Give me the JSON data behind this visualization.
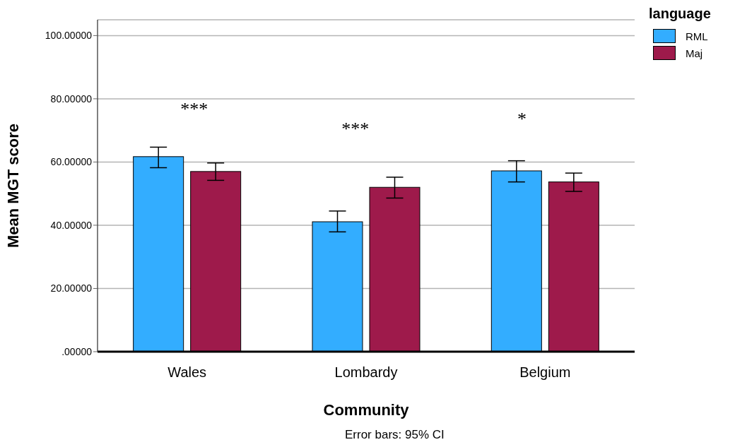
{
  "chart_data": {
    "type": "bar",
    "xlabel": "Community",
    "ylabel": "Mean MGT score",
    "legend_title": "language",
    "categories": [
      "Wales",
      "Lombardy",
      "Belgium"
    ],
    "series": [
      {
        "name": "RML",
        "color": "#33adff",
        "values": [
          61.7,
          41.1,
          57.2
        ],
        "errors": [
          [
            58.2,
            64.7
          ],
          [
            37.9,
            44.5
          ],
          [
            53.7,
            60.4
          ]
        ]
      },
      {
        "name": "Maj",
        "color": "#9e1a4b",
        "values": [
          57.0,
          52.0,
          53.7
        ],
        "errors": [
          [
            54.2,
            59.7
          ],
          [
            48.6,
            55.2
          ],
          [
            50.7,
            56.5
          ]
        ]
      }
    ],
    "ylim": [
      0,
      105
    ],
    "yticks": [
      {
        "value": 0,
        "label": ".00000"
      },
      {
        "value": 20,
        "label": "20.00000"
      },
      {
        "value": 40,
        "label": "40.00000"
      },
      {
        "value": 60,
        "label": "60.00000"
      },
      {
        "value": 80,
        "label": "80.00000"
      },
      {
        "value": 100,
        "label": "100.00000"
      }
    ],
    "grid": "y",
    "legend": "top right",
    "annotations": [
      "***",
      "***",
      "*",
      "Error bars: 95% CI"
    ]
  }
}
